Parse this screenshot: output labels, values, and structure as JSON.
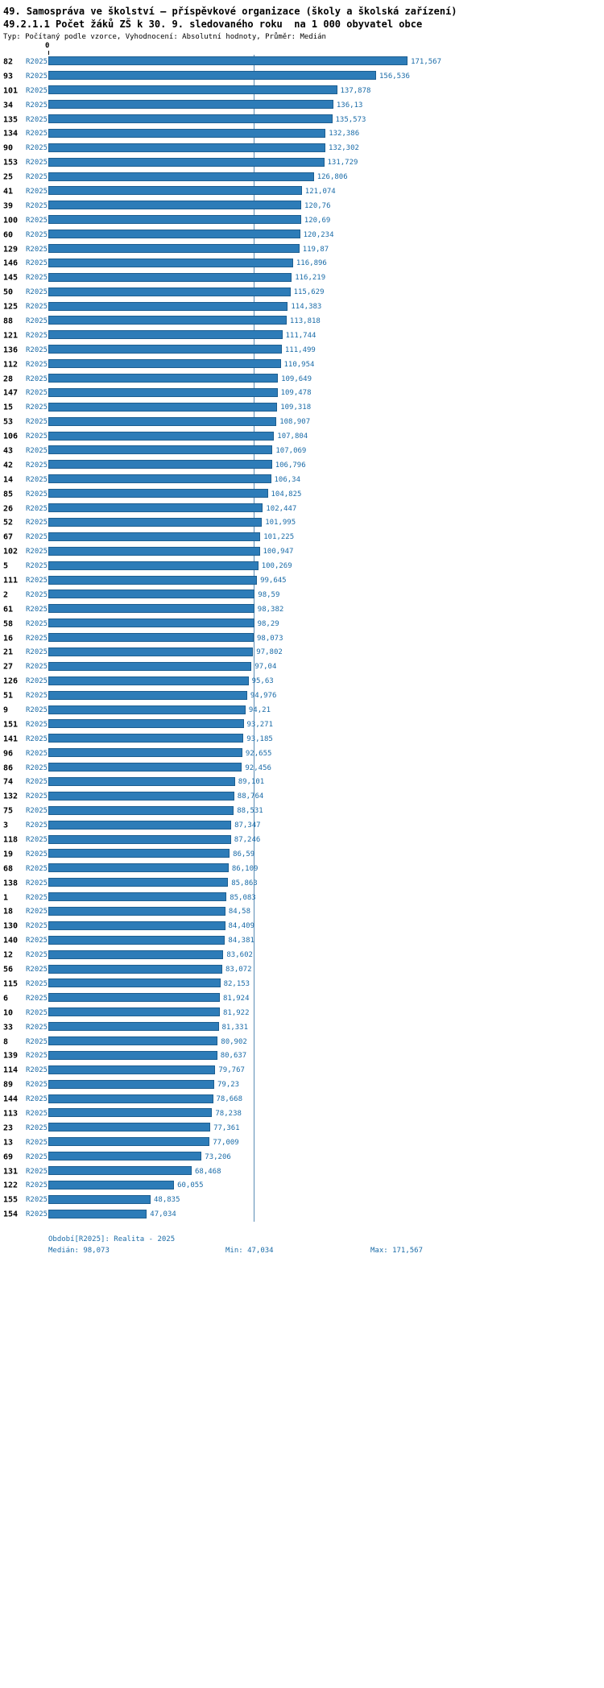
{
  "page": {
    "title_line1": "49. Samospráva ve školství – příspěvkové organizace (školy a školská zařízení)",
    "title_line2": "49.2.1.1 Počet žáků ZŠ k 30. 9. sledovaného roku  na 1 000 obyvatel obce",
    "meta_line": "Typ: Počítaný podle vzorce, Vyhodnocení: Absolutní hodnoty, Průměr: Medián"
  },
  "colors": {
    "bar_fill": "#2d7cb8",
    "bar_border": "#1d5e90",
    "blue_text": "#1b6ca8",
    "median_line": "#5a8cb5"
  },
  "chart_data": {
    "type": "bar",
    "orientation": "horizontal",
    "series_label": "R2025",
    "value_axis": {
      "origin_label": "0",
      "min": 0
    },
    "median": 98.073,
    "min": 47.034,
    "max": 171.567,
    "rows": [
      {
        "id": "82",
        "value": 171.567,
        "label": "171,567"
      },
      {
        "id": "93",
        "value": 156.536,
        "label": "156,536"
      },
      {
        "id": "101",
        "value": 137.878,
        "label": "137,878"
      },
      {
        "id": "34",
        "value": 136.13,
        "label": "136,13"
      },
      {
        "id": "135",
        "value": 135.573,
        "label": "135,573"
      },
      {
        "id": "134",
        "value": 132.386,
        "label": "132,386"
      },
      {
        "id": "90",
        "value": 132.302,
        "label": "132,302"
      },
      {
        "id": "153",
        "value": 131.729,
        "label": "131,729"
      },
      {
        "id": "25",
        "value": 126.806,
        "label": "126,806"
      },
      {
        "id": "41",
        "value": 121.074,
        "label": "121,074"
      },
      {
        "id": "39",
        "value": 120.76,
        "label": "120,76"
      },
      {
        "id": "100",
        "value": 120.69,
        "label": "120,69"
      },
      {
        "id": "60",
        "value": 120.234,
        "label": "120,234"
      },
      {
        "id": "129",
        "value": 119.87,
        "label": "119,87"
      },
      {
        "id": "146",
        "value": 116.896,
        "label": "116,896"
      },
      {
        "id": "145",
        "value": 116.219,
        "label": "116,219"
      },
      {
        "id": "50",
        "value": 115.629,
        "label": "115,629"
      },
      {
        "id": "125",
        "value": 114.383,
        "label": "114,383"
      },
      {
        "id": "88",
        "value": 113.818,
        "label": "113,818"
      },
      {
        "id": "121",
        "value": 111.744,
        "label": "111,744"
      },
      {
        "id": "136",
        "value": 111.499,
        "label": "111,499"
      },
      {
        "id": "112",
        "value": 110.954,
        "label": "110,954"
      },
      {
        "id": "28",
        "value": 109.649,
        "label": "109,649"
      },
      {
        "id": "147",
        "value": 109.478,
        "label": "109,478"
      },
      {
        "id": "15",
        "value": 109.318,
        "label": "109,318"
      },
      {
        "id": "53",
        "value": 108.907,
        "label": "108,907"
      },
      {
        "id": "106",
        "value": 107.804,
        "label": "107,804"
      },
      {
        "id": "43",
        "value": 107.069,
        "label": "107,069"
      },
      {
        "id": "42",
        "value": 106.796,
        "label": "106,796"
      },
      {
        "id": "14",
        "value": 106.34,
        "label": "106,34"
      },
      {
        "id": "85",
        "value": 104.825,
        "label": "104,825"
      },
      {
        "id": "26",
        "value": 102.447,
        "label": "102,447"
      },
      {
        "id": "52",
        "value": 101.995,
        "label": "101,995"
      },
      {
        "id": "67",
        "value": 101.225,
        "label": "101,225"
      },
      {
        "id": "102",
        "value": 100.947,
        "label": "100,947"
      },
      {
        "id": "5",
        "value": 100.269,
        "label": "100,269"
      },
      {
        "id": "111",
        "value": 99.645,
        "label": "99,645"
      },
      {
        "id": "2",
        "value": 98.59,
        "label": "98,59"
      },
      {
        "id": "61",
        "value": 98.382,
        "label": "98,382"
      },
      {
        "id": "58",
        "value": 98.29,
        "label": "98,29"
      },
      {
        "id": "16",
        "value": 98.073,
        "label": "98,073"
      },
      {
        "id": "21",
        "value": 97.802,
        "label": "97,802"
      },
      {
        "id": "27",
        "value": 97.04,
        "label": "97,04"
      },
      {
        "id": "126",
        "value": 95.63,
        "label": "95,63"
      },
      {
        "id": "51",
        "value": 94.976,
        "label": "94,976"
      },
      {
        "id": "9",
        "value": 94.21,
        "label": "94,21"
      },
      {
        "id": "151",
        "value": 93.271,
        "label": "93,271"
      },
      {
        "id": "141",
        "value": 93.185,
        "label": "93,185"
      },
      {
        "id": "96",
        "value": 92.655,
        "label": "92,655"
      },
      {
        "id": "86",
        "value": 92.456,
        "label": "92,456"
      },
      {
        "id": "74",
        "value": 89.101,
        "label": "89,101"
      },
      {
        "id": "132",
        "value": 88.764,
        "label": "88,764"
      },
      {
        "id": "75",
        "value": 88.531,
        "label": "88,531"
      },
      {
        "id": "3",
        "value": 87.347,
        "label": "87,347"
      },
      {
        "id": "118",
        "value": 87.246,
        "label": "87,246"
      },
      {
        "id": "19",
        "value": 86.59,
        "label": "86,59"
      },
      {
        "id": "68",
        "value": 86.109,
        "label": "86,109"
      },
      {
        "id": "138",
        "value": 85.863,
        "label": "85,863"
      },
      {
        "id": "1",
        "value": 85.083,
        "label": "85,083"
      },
      {
        "id": "18",
        "value": 84.58,
        "label": "84,58"
      },
      {
        "id": "130",
        "value": 84.409,
        "label": "84,409"
      },
      {
        "id": "140",
        "value": 84.381,
        "label": "84,381"
      },
      {
        "id": "12",
        "value": 83.602,
        "label": "83,602"
      },
      {
        "id": "56",
        "value": 83.072,
        "label": "83,072"
      },
      {
        "id": "115",
        "value": 82.153,
        "label": "82,153"
      },
      {
        "id": "6",
        "value": 81.924,
        "label": "81,924"
      },
      {
        "id": "10",
        "value": 81.922,
        "label": "81,922"
      },
      {
        "id": "33",
        "value": 81.331,
        "label": "81,331"
      },
      {
        "id": "8",
        "value": 80.902,
        "label": "80,902"
      },
      {
        "id": "139",
        "value": 80.637,
        "label": "80,637"
      },
      {
        "id": "114",
        "value": 79.767,
        "label": "79,767"
      },
      {
        "id": "89",
        "value": 79.23,
        "label": "79,23"
      },
      {
        "id": "144",
        "value": 78.668,
        "label": "78,668"
      },
      {
        "id": "113",
        "value": 78.238,
        "label": "78,238"
      },
      {
        "id": "23",
        "value": 77.361,
        "label": "77,361"
      },
      {
        "id": "13",
        "value": 77.009,
        "label": "77,009"
      },
      {
        "id": "69",
        "value": 73.206,
        "label": "73,206"
      },
      {
        "id": "131",
        "value": 68.468,
        "label": "68,468"
      },
      {
        "id": "122",
        "value": 60.055,
        "label": "60,055"
      },
      {
        "id": "155",
        "value": 48.835,
        "label": "48,835"
      },
      {
        "id": "154",
        "value": 47.034,
        "label": "47,034"
      }
    ]
  },
  "footer": {
    "period_line": "Období[R2025]: Realita - 2025",
    "median_label": "Medián: 98,073",
    "min_label": "Min: 47,034",
    "max_label": "Max: 171,567"
  }
}
